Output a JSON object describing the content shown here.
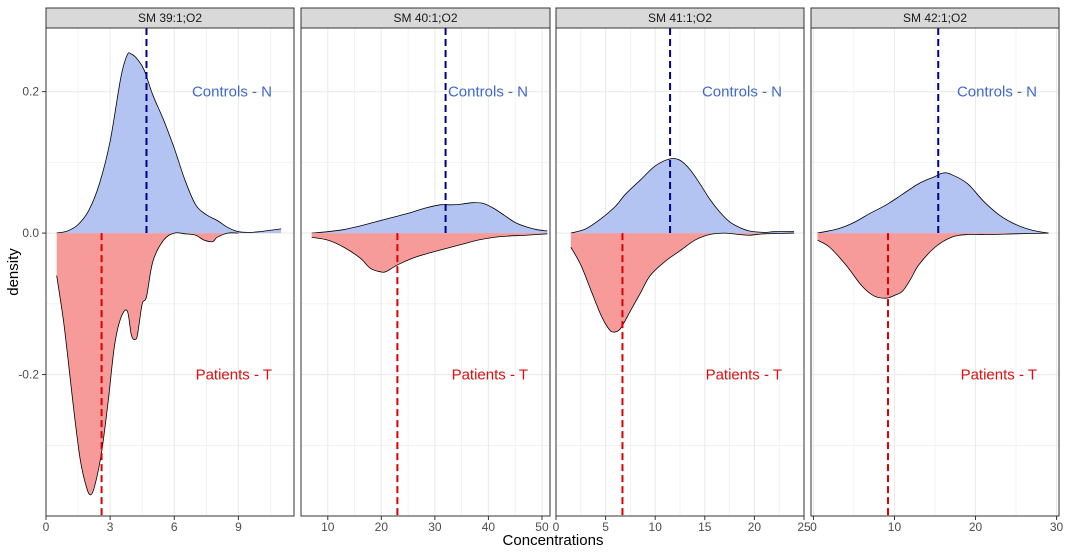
{
  "colors": {
    "controls_fill": "#b3c4f2",
    "patients_fill": "#f79a9a",
    "controls_line": "#00008b",
    "patients_line": "#dd0000",
    "controls_text": "#4169c8",
    "patients_text": "#dd1010",
    "strip_bg": "#d9d9d9",
    "grid": "#ebebeb"
  },
  "chart_data": {
    "type": "area",
    "subtype": "mirrored density",
    "xlabel": "Concentrations",
    "ylabel": "density",
    "ylim": [
      -0.4,
      0.29
    ],
    "y_ticks": [
      -0.2,
      0.0,
      0.2
    ],
    "y_tick_labels": [
      "-0.2",
      "0.0",
      "0.2"
    ],
    "grid": true,
    "legend": "none",
    "facets": [
      {
        "title": "SM 39:1;O2",
        "xlim": [
          0,
          11.6
        ],
        "x_ticks": [
          0,
          3,
          6,
          9
        ],
        "x_tick_labels": [
          "0",
          "3",
          "6",
          "9"
        ],
        "controls_label": "Controls - N",
        "patients_label": "Patients - T",
        "controls_mean": 4.7,
        "patients_mean": 2.6,
        "controls": [
          [
            0.5,
            0.0
          ],
          [
            1.0,
            0.003
          ],
          [
            1.5,
            0.012
          ],
          [
            2.0,
            0.032
          ],
          [
            2.5,
            0.07
          ],
          [
            3.0,
            0.13
          ],
          [
            3.5,
            0.22
          ],
          [
            3.8,
            0.252
          ],
          [
            4.0,
            0.253
          ],
          [
            4.3,
            0.245
          ],
          [
            4.6,
            0.23
          ],
          [
            5.0,
            0.195
          ],
          [
            5.5,
            0.16
          ],
          [
            6.0,
            0.12
          ],
          [
            6.5,
            0.075
          ],
          [
            7.0,
            0.04
          ],
          [
            7.5,
            0.026
          ],
          [
            8.0,
            0.018
          ],
          [
            8.5,
            0.008
          ],
          [
            9.0,
            0.002
          ],
          [
            9.5,
            0.001
          ],
          [
            10.0,
            0.002
          ],
          [
            10.5,
            0.004
          ],
          [
            11.0,
            0.006
          ]
        ],
        "patients": [
          [
            0.5,
            -0.06
          ],
          [
            0.8,
            -0.12
          ],
          [
            1.0,
            -0.17
          ],
          [
            1.3,
            -0.25
          ],
          [
            1.6,
            -0.32
          ],
          [
            1.9,
            -0.36
          ],
          [
            2.1,
            -0.37
          ],
          [
            2.3,
            -0.355
          ],
          [
            2.6,
            -0.31
          ],
          [
            2.9,
            -0.24
          ],
          [
            3.2,
            -0.16
          ],
          [
            3.5,
            -0.12
          ],
          [
            3.8,
            -0.11
          ],
          [
            4.0,
            -0.145
          ],
          [
            4.2,
            -0.15
          ],
          [
            4.3,
            -0.14
          ],
          [
            4.5,
            -0.1
          ],
          [
            4.7,
            -0.09
          ],
          [
            5.0,
            -0.04
          ],
          [
            5.5,
            -0.01
          ],
          [
            6.0,
            0.0
          ],
          [
            6.5,
            -0.001
          ],
          [
            7.0,
            -0.003
          ],
          [
            7.4,
            -0.01
          ],
          [
            7.8,
            -0.012
          ],
          [
            8.0,
            -0.006
          ],
          [
            8.5,
            0.0
          ],
          [
            9.0,
            0.0
          ]
        ]
      },
      {
        "title": "SM 40:1;O2",
        "xlim": [
          5,
          51.5
        ],
        "x_ticks": [
          10,
          20,
          30,
          40,
          50
        ],
        "x_tick_labels": [
          "10",
          "20",
          "30",
          "40",
          "50"
        ],
        "controls_label": "Controls - N",
        "patients_label": "Patients - T",
        "controls_mean": 32,
        "patients_mean": 23,
        "controls": [
          [
            7,
            0.0
          ],
          [
            10,
            0.002
          ],
          [
            13,
            0.005
          ],
          [
            16,
            0.01
          ],
          [
            19,
            0.016
          ],
          [
            22,
            0.022
          ],
          [
            25,
            0.028
          ],
          [
            28,
            0.035
          ],
          [
            31,
            0.04
          ],
          [
            33,
            0.04
          ],
          [
            35,
            0.041
          ],
          [
            37,
            0.043
          ],
          [
            39,
            0.042
          ],
          [
            41,
            0.035
          ],
          [
            43,
            0.025
          ],
          [
            45,
            0.015
          ],
          [
            47,
            0.009
          ],
          [
            49,
            0.005
          ],
          [
            51,
            0.003
          ]
        ],
        "patients": [
          [
            7,
            -0.006
          ],
          [
            10,
            -0.01
          ],
          [
            13,
            -0.02
          ],
          [
            16,
            -0.035
          ],
          [
            18,
            -0.05
          ],
          [
            20,
            -0.055
          ],
          [
            21,
            -0.054
          ],
          [
            23,
            -0.045
          ],
          [
            26,
            -0.035
          ],
          [
            29,
            -0.028
          ],
          [
            32,
            -0.022
          ],
          [
            35,
            -0.016
          ],
          [
            38,
            -0.01
          ],
          [
            41,
            -0.006
          ],
          [
            44,
            -0.004
          ],
          [
            47,
            -0.003
          ],
          [
            51,
            -0.001
          ]
        ]
      },
      {
        "title": "SM 41:1;O2",
        "xlim": [
          0,
          25
        ],
        "x_ticks": [
          0,
          5,
          10,
          15,
          20,
          25
        ],
        "x_tick_labels": [
          "0",
          "5",
          "10",
          "15",
          "20",
          "25"
        ],
        "controls_label": "Controls - N",
        "patients_label": "Patients - T",
        "controls_mean": 11.5,
        "patients_mean": 6.7,
        "controls": [
          [
            1.5,
            0.0
          ],
          [
            3,
            0.006
          ],
          [
            4.5,
            0.02
          ],
          [
            6,
            0.038
          ],
          [
            7,
            0.055
          ],
          [
            8.5,
            0.075
          ],
          [
            10,
            0.095
          ],
          [
            11.5,
            0.105
          ],
          [
            12.5,
            0.103
          ],
          [
            13.5,
            0.09
          ],
          [
            14.5,
            0.07
          ],
          [
            15.5,
            0.048
          ],
          [
            16.5,
            0.03
          ],
          [
            17.5,
            0.016
          ],
          [
            18.5,
            0.008
          ],
          [
            19.5,
            0.003
          ],
          [
            21,
            0.001
          ],
          [
            22,
            0.002
          ],
          [
            24,
            0.002
          ]
        ],
        "patients": [
          [
            1.5,
            -0.02
          ],
          [
            2.5,
            -0.045
          ],
          [
            3.5,
            -0.08
          ],
          [
            4.5,
            -0.115
          ],
          [
            5.3,
            -0.135
          ],
          [
            5.8,
            -0.14
          ],
          [
            6.5,
            -0.135
          ],
          [
            7.5,
            -0.11
          ],
          [
            8.5,
            -0.085
          ],
          [
            9.5,
            -0.06
          ],
          [
            11,
            -0.04
          ],
          [
            12.5,
            -0.025
          ],
          [
            14,
            -0.01
          ],
          [
            15.5,
            -0.002
          ],
          [
            17,
            0.0
          ],
          [
            18.5,
            -0.002
          ],
          [
            19.5,
            -0.003
          ],
          [
            21,
            -0.001
          ],
          [
            24,
            0.0
          ]
        ]
      },
      {
        "title": "SM 42:1;O2",
        "xlim": [
          -0.3,
          30.3
        ],
        "x_ticks": [
          0,
          10,
          20,
          30
        ],
        "x_tick_labels": [
          "0",
          "10",
          "20",
          "30"
        ],
        "controls_label": "Controls - N",
        "patients_label": "Patients - T",
        "controls_mean": 15.4,
        "patients_mean": 9.2,
        "controls": [
          [
            0.5,
            0.0
          ],
          [
            3,
            0.006
          ],
          [
            5,
            0.015
          ],
          [
            7,
            0.028
          ],
          [
            9,
            0.04
          ],
          [
            11,
            0.055
          ],
          [
            13,
            0.07
          ],
          [
            15,
            0.08
          ],
          [
            16,
            0.085
          ],
          [
            17,
            0.083
          ],
          [
            19,
            0.07
          ],
          [
            21,
            0.045
          ],
          [
            23,
            0.025
          ],
          [
            25,
            0.012
          ],
          [
            27,
            0.004
          ],
          [
            29,
            0.0
          ]
        ],
        "patients": [
          [
            0.5,
            -0.01
          ],
          [
            2,
            -0.02
          ],
          [
            4,
            -0.045
          ],
          [
            6,
            -0.075
          ],
          [
            7.5,
            -0.089
          ],
          [
            9,
            -0.092
          ],
          [
            10,
            -0.088
          ],
          [
            11,
            -0.082
          ],
          [
            12,
            -0.065
          ],
          [
            13,
            -0.045
          ],
          [
            15,
            -0.02
          ],
          [
            17,
            -0.006
          ],
          [
            19,
            -0.002
          ],
          [
            22,
            -0.002
          ],
          [
            25,
            -0.001
          ],
          [
            29,
            0.0
          ]
        ]
      }
    ]
  }
}
